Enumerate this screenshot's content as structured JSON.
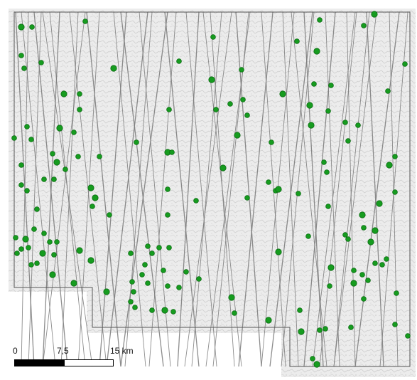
{
  "map": {
    "background_color": "#ffffff",
    "terrain_color": "#d9d9d9",
    "boundary_color": "#555555",
    "flight_line_color": "#7a7a7a",
    "site_color": "#169c1f",
    "site_edge_color": "#0b6b12"
  },
  "scale_bar": {
    "tick_0": "0",
    "tick_1": "7,5",
    "tick_2": "15 km"
  }
}
